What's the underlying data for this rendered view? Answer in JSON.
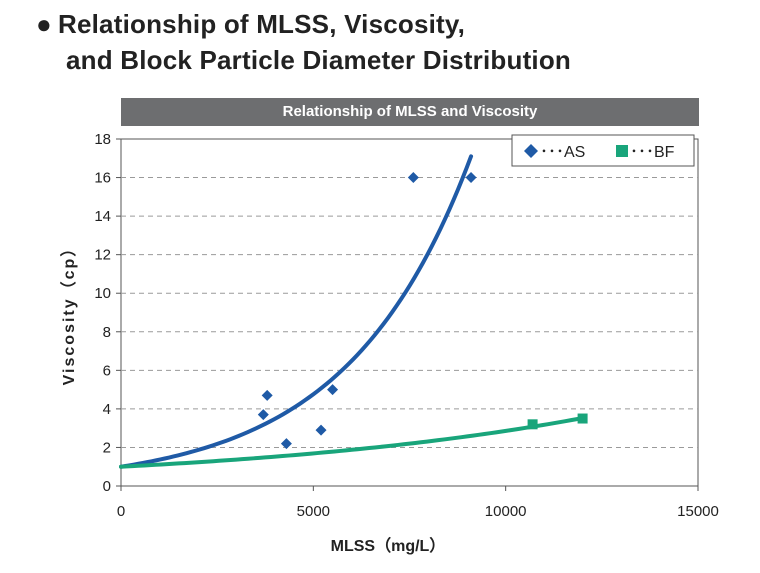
{
  "heading": {
    "bullet": "●",
    "line1": "Relationship of MLSS, Viscosity,",
    "line2": "and Block Particle Diameter Distribution"
  },
  "chart_data": {
    "type": "scatter",
    "title": "Relationship of MLSS and Viscosity",
    "xlabel": "MLSS（mg/L）",
    "ylabel": "Viscosity（cp）",
    "xlim": [
      0,
      15000
    ],
    "ylim": [
      0,
      18
    ],
    "x_ticks": [
      0,
      5000,
      10000,
      15000
    ],
    "y_ticks": [
      0,
      2,
      4,
      6,
      8,
      10,
      12,
      14,
      16,
      18
    ],
    "grid": "horizontal-dashed",
    "legend_position": "top-right",
    "series": [
      {
        "name": "･･･AS",
        "marker": "diamond",
        "color": "#1f5aa6",
        "points": [
          {
            "x": 3700,
            "y": 3.7
          },
          {
            "x": 3800,
            "y": 4.7
          },
          {
            "x": 4300,
            "y": 2.2
          },
          {
            "x": 5200,
            "y": 2.9
          },
          {
            "x": 5500,
            "y": 5.0
          },
          {
            "x": 7600,
            "y": 16.0
          },
          {
            "x": 9100,
            "y": 16.0
          }
        ],
        "trend": {
          "type": "exponential",
          "a": 1.0,
          "b": 0.000312,
          "x_from": 0,
          "x_to": 9100
        }
      },
      {
        "name": "･･･BF",
        "marker": "square",
        "color": "#19a57b",
        "points": [
          {
            "x": 10700,
            "y": 3.2
          },
          {
            "x": 12000,
            "y": 3.5
          }
        ],
        "trend": {
          "type": "exponential",
          "a": 1.0,
          "b": 0.000105,
          "x_from": 0,
          "x_to": 12000
        }
      }
    ]
  }
}
